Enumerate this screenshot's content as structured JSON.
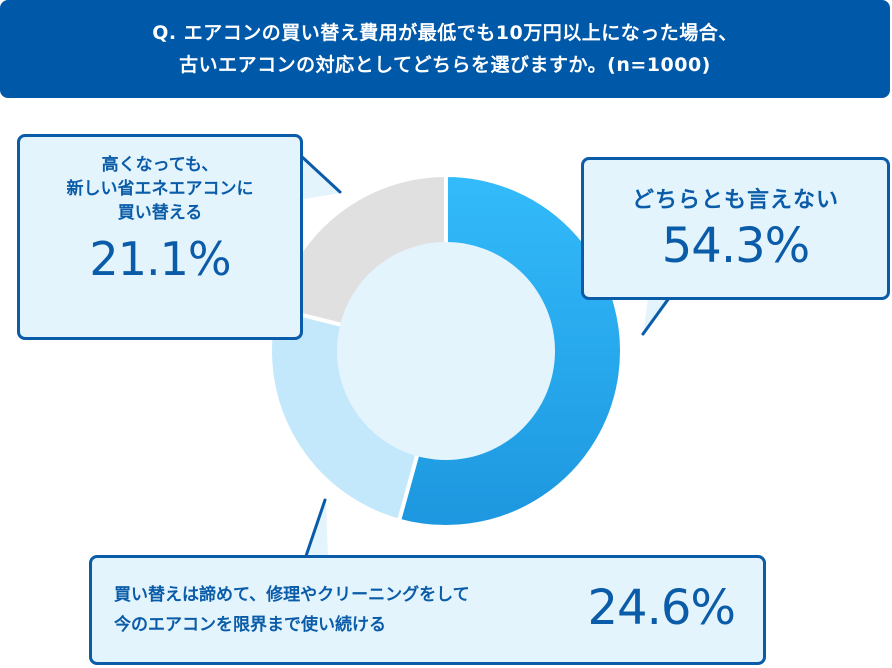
{
  "header": {
    "line1": "Q. エアコンの買い替え費用が最低でも10万円以上になった場合、",
    "line2": "古いエアコンの対応としてどちらを選びますか。(n=1000)"
  },
  "bubbles": {
    "left": {
      "line1": "高くなっても、",
      "line2": "新しい省エネエアコンに",
      "line3": "買い替える",
      "pct": "21.1%"
    },
    "right": {
      "label": "どちらとも言えない",
      "pct": "54.3%"
    },
    "bottom": {
      "line1": "買い替えは諦めて、修理やクリーニングをして",
      "line2": "今のエアコンを限界まで使い続ける",
      "pct": "24.6%"
    }
  },
  "colors": {
    "header_bg": "#0058a8",
    "bubble_border": "#0b5ca8",
    "bubble_bg": "#e3f4fd",
    "slice_neutral": "#2aa9ef",
    "slice_repair": "#c3e7fb",
    "slice_replace": "#e0e0e0",
    "center": "#e3f4fd"
  },
  "chart_data": {
    "type": "pie",
    "subtype": "donut",
    "title": "Q. エアコンの買い替え費用が最低でも10万円以上になった場合、古いエアコンの対応としてどちらを選びますか。(n=1000)",
    "categories": [
      "どちらとも言えない",
      "買い替えは諦めて、修理やクリーニングをして今のエアコンを限界まで使い続ける",
      "高くなっても、新しい省エネエアコンに買い替える"
    ],
    "values": [
      54.3,
      24.6,
      21.1
    ],
    "unit": "%",
    "n": 1000,
    "start_angle": "12 o'clock, clockwise"
  }
}
